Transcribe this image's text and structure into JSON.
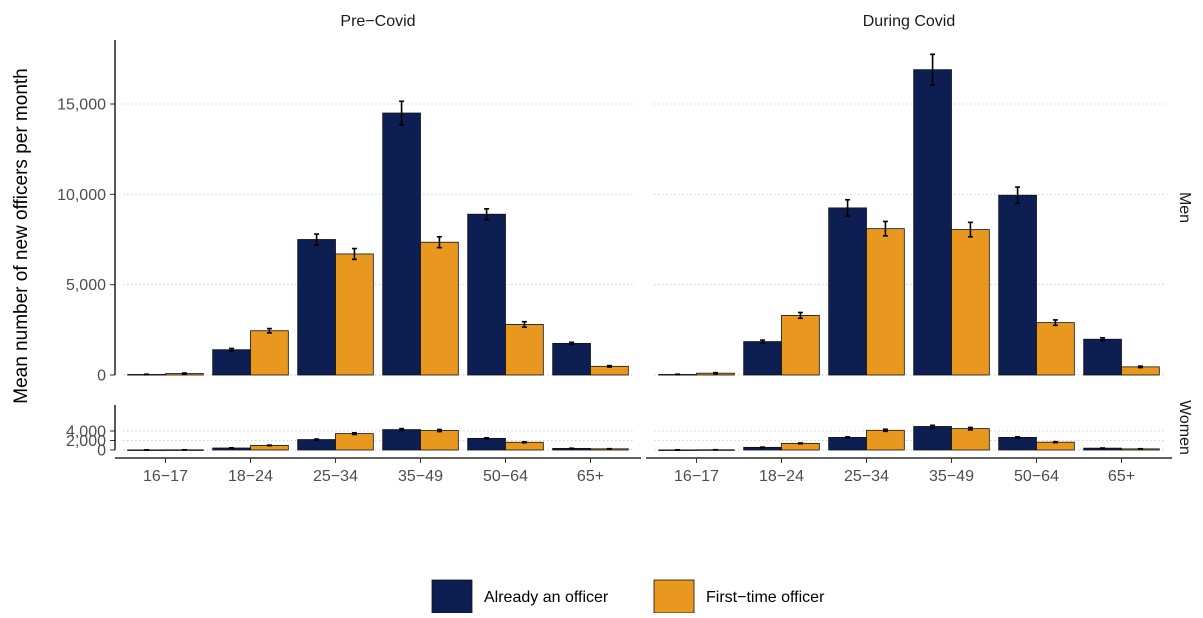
{
  "chart_data": {
    "type": "bar",
    "ylabel": "Mean number of new officers per month",
    "categories": [
      "16−17",
      "18−24",
      "25−34",
      "35−49",
      "50−64",
      "65+"
    ],
    "columns": [
      "Pre−Covid",
      "During Covid"
    ],
    "rows": [
      "Men",
      "Women"
    ],
    "legend": {
      "position": "bottom",
      "entries": [
        "Already an officer",
        "First−time officer"
      ]
    },
    "colors": {
      "Already an officer": "#0d1f52",
      "First−time officer": "#e8981f"
    },
    "grid": "horizontal dotted",
    "panels": [
      {
        "column": "Pre−Covid",
        "row": "Men",
        "ylim": [
          0,
          18300
        ],
        "yticks": [
          0,
          5000,
          10000,
          15000
        ],
        "ytick_labels": [
          "0",
          "5,000",
          "10,000",
          "15,000"
        ],
        "series": [
          {
            "name": "Already an officer",
            "values": [
              30,
              1400,
              7500,
              14500,
              8900,
              1750
            ],
            "errors": [
              15,
              70,
              300,
              650,
              300,
              60
            ]
          },
          {
            "name": "First−time officer",
            "values": [
              80,
              2450,
              6700,
              7350,
              2800,
              480
            ],
            "errors": [
              30,
              120,
              300,
              300,
              150,
              40
            ]
          }
        ]
      },
      {
        "column": "During Covid",
        "row": "Men",
        "ylim": [
          0,
          18300
        ],
        "yticks": [
          0,
          5000,
          10000,
          15000
        ],
        "ytick_labels": [
          "0",
          "5,000",
          "10,000",
          "15,000"
        ],
        "series": [
          {
            "name": "Already an officer",
            "values": [
              30,
              1850,
              9250,
              16900,
              9950,
              1980
            ],
            "errors": [
              15,
              80,
              450,
              850,
              450,
              80
            ]
          },
          {
            "name": "First−time officer",
            "values": [
              100,
              3300,
              8100,
              8050,
              2900,
              450
            ],
            "errors": [
              30,
              160,
              400,
              400,
              150,
              40
            ]
          }
        ]
      },
      {
        "column": "Pre−Covid",
        "row": "Women",
        "ylim": [
          0,
          5000
        ],
        "yticks": [
          0,
          2000,
          4000
        ],
        "ytick_labels": [
          "0",
          "2,000",
          "4,000"
        ],
        "series": [
          {
            "name": "Already an officer",
            "values": [
              20,
              420,
              2200,
              4300,
              2450,
              340
            ],
            "errors": [
              10,
              40,
              100,
              200,
              120,
              30
            ]
          },
          {
            "name": "First−time officer",
            "values": [
              40,
              970,
              3450,
              4100,
              1630,
              250
            ],
            "errors": [
              10,
              60,
              180,
              220,
              100,
              30
            ]
          }
        ]
      },
      {
        "column": "During Covid",
        "row": "Women",
        "ylim": [
          0,
          5000
        ],
        "yticks": [
          0,
          2000,
          4000
        ],
        "ytick_labels": [
          "0",
          "2,000",
          "4,000"
        ],
        "series": [
          {
            "name": "Already an officer",
            "values": [
              20,
              560,
              2650,
              4950,
              2650,
              390
            ],
            "errors": [
              10,
              50,
              120,
              250,
              130,
              30
            ]
          },
          {
            "name": "First−time officer",
            "values": [
              50,
              1400,
              4150,
              4500,
              1650,
              240
            ],
            "errors": [
              10,
              80,
              220,
              250,
              100,
              30
            ]
          }
        ]
      }
    ]
  }
}
